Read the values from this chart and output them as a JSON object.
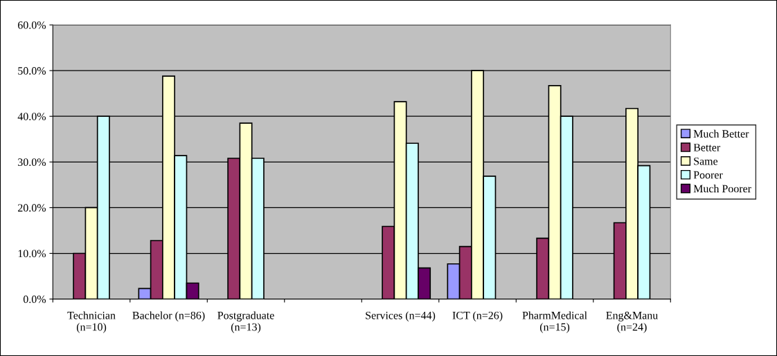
{
  "chart_data": {
    "type": "bar",
    "categories": [
      "Technician\n(n=10)",
      "Bachelor (n=86)",
      "Postgraduate\n(n=13)",
      null,
      "Services (n=44)",
      "ICT (n=26)",
      "PharmMedical\n(n=15)",
      "Eng&Manu\n(n=24)"
    ],
    "series": [
      {
        "name": "Much Better",
        "color": "#9999ff",
        "values": [
          null,
          2.3,
          null,
          null,
          null,
          7.7,
          null,
          null
        ]
      },
      {
        "name": "Better",
        "color": "#993366",
        "values": [
          10.0,
          12.8,
          30.8,
          null,
          15.9,
          11.5,
          13.3,
          16.7
        ]
      },
      {
        "name": "Same",
        "color": "#ffffcc",
        "values": [
          20.0,
          48.8,
          38.5,
          null,
          43.2,
          50.0,
          46.7,
          41.7
        ]
      },
      {
        "name": "Poorer",
        "color": "#ccffff",
        "values": [
          40.0,
          31.4,
          30.8,
          null,
          34.1,
          26.9,
          40.0,
          29.2
        ]
      },
      {
        "name": "Much Poorer",
        "color": "#660066",
        "values": [
          null,
          3.5,
          null,
          null,
          6.8,
          null,
          null,
          null
        ]
      }
    ],
    "ylim": [
      0,
      60
    ],
    "yticks": [
      {
        "value": 0,
        "label": "0.0%"
      },
      {
        "value": 10,
        "label": "10.0%"
      },
      {
        "value": 20,
        "label": "20.0%"
      },
      {
        "value": 30,
        "label": "30.0%"
      },
      {
        "value": 40,
        "label": "40.0%"
      },
      {
        "value": 50,
        "label": "50.0%"
      },
      {
        "value": 60,
        "label": "60.0%"
      }
    ],
    "grid": "y",
    "legend": "right"
  }
}
